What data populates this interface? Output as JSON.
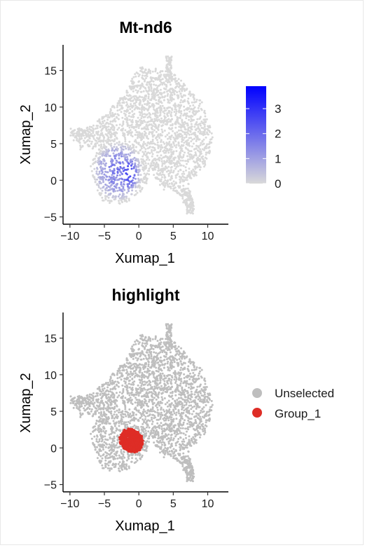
{
  "chart_data": [
    {
      "type": "scatter",
      "title": "Mt-nd6",
      "xlabel": "Xumap_1",
      "ylabel": "Xumap_2",
      "xlim": [
        -11,
        13
      ],
      "ylim": [
        -6,
        18.5
      ],
      "x_ticks": [
        -10,
        -5,
        0,
        5,
        10
      ],
      "x_tick_labels": [
        "−10",
        "−5",
        "0",
        "5",
        "10"
      ],
      "y_ticks": [
        -5,
        0,
        5,
        10,
        15
      ],
      "y_tick_labels": [
        "−5",
        "0",
        "5",
        "10",
        "15"
      ],
      "grid": false,
      "color_scale": {
        "type": "continuous",
        "min": 0,
        "max": 3.9,
        "low_color": "#d9d9d9",
        "high_color": "#0000ff",
        "ticks": [
          0,
          1,
          2,
          3
        ],
        "tick_labels": [
          "0",
          "1",
          "2",
          "3"
        ],
        "legend_position": "right"
      }
    },
    {
      "type": "scatter",
      "title": "highlight",
      "xlabel": "Xumap_1",
      "ylabel": "Xumap_2",
      "xlim": [
        -11,
        13
      ],
      "ylim": [
        -6,
        18.5
      ],
      "x_ticks": [
        -10,
        -5,
        0,
        5,
        10
      ],
      "x_tick_labels": [
        "−10",
        "−5",
        "0",
        "5",
        "10"
      ],
      "y_ticks": [
        -5,
        0,
        5,
        10,
        15
      ],
      "y_tick_labels": [
        "−5",
        "0",
        "5",
        "10",
        "15"
      ],
      "grid": false,
      "legend_position": "right",
      "series": [
        {
          "name": "Unselected",
          "color": "#bebebe"
        },
        {
          "name": "Group_1",
          "color": "#de2d26"
        }
      ]
    }
  ]
}
